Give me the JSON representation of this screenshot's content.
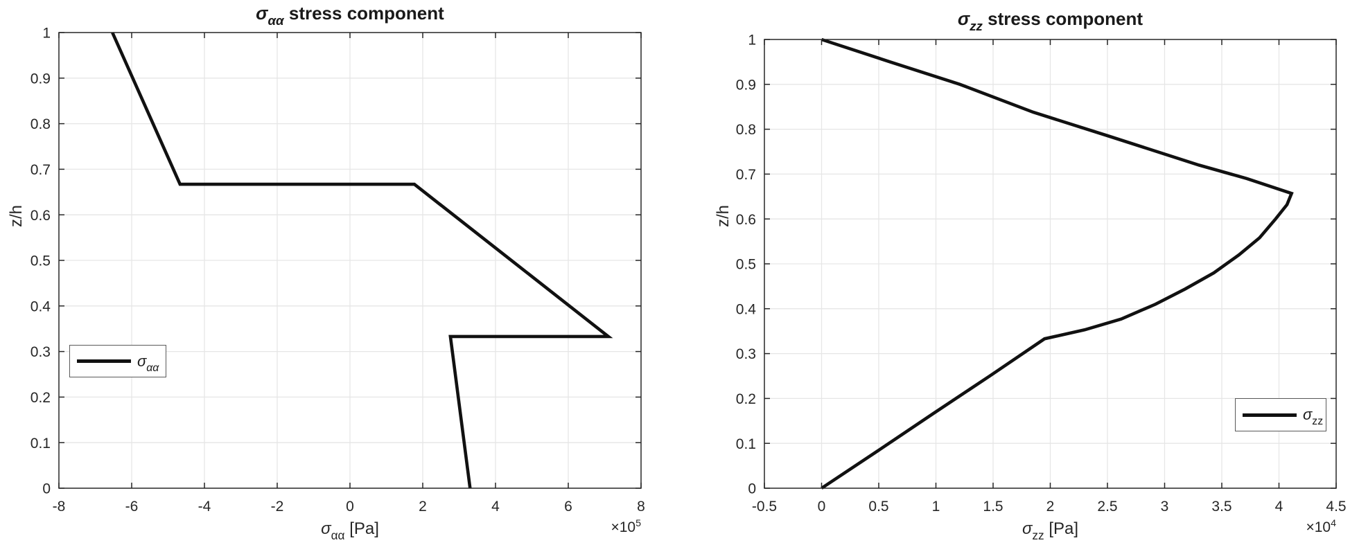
{
  "colors": {
    "background": "#ffffff",
    "curve": "#111111",
    "axis": "#262626",
    "grid": "#e6e6e6",
    "text": "#262626",
    "legend_border": "#595959"
  },
  "panels": [
    {
      "title": {
        "sigma": "σ",
        "sub": "αα",
        "rest": " stress component"
      },
      "xlabel": {
        "sigma": "σ",
        "sub": "αα",
        "rest": " [Pa]"
      },
      "ylabel": "z/h",
      "multiplier": {
        "prefix": "×10",
        "exp": "5"
      },
      "legend": {
        "sigma": "σ",
        "sub": "αα"
      }
    },
    {
      "title": {
        "sigma": "σ",
        "sub": "zz",
        "rest": " stress component"
      },
      "xlabel": {
        "sigma": "σ",
        "sub": "zz",
        "rest": " [Pa]"
      },
      "ylabel": "z/h",
      "multiplier": {
        "prefix": "×10",
        "exp": "4"
      },
      "legend": {
        "sigma": "σ",
        "sub": "zz"
      }
    }
  ],
  "chart_data": [
    {
      "type": "line",
      "title": "σ_αα stress component",
      "xlabel": "σ_αα [Pa]",
      "ylabel": "z/h",
      "x_unit_multiplier": 100000,
      "xlim": [
        -8,
        8
      ],
      "ylim": [
        0,
        1
      ],
      "grid": true,
      "x_ticks": [
        -8,
        -6,
        -4,
        -2,
        0,
        2,
        4,
        6,
        8
      ],
      "x_tick_labels": [
        "-8",
        "-6",
        "-4",
        "-2",
        "0",
        "2",
        "4",
        "6",
        "8"
      ],
      "y_ticks": [
        0,
        0.1,
        0.2,
        0.3,
        0.4,
        0.5,
        0.6,
        0.7,
        0.8,
        0.9,
        1
      ],
      "y_tick_labels": [
        "0",
        "0.1",
        "0.2",
        "0.3",
        "0.4",
        "0.5",
        "0.6",
        "0.7",
        "0.8",
        "0.9",
        "1"
      ],
      "legend_position": "left-lower",
      "series": [
        {
          "name": "σ_αα",
          "points": [
            [
              3.3,
              0.0
            ],
            [
              2.76,
              0.333
            ],
            [
              7.1,
              0.333
            ],
            [
              1.77,
              0.667
            ],
            [
              -4.67,
              0.667
            ],
            [
              -6.53,
              1.0
            ]
          ]
        }
      ]
    },
    {
      "type": "line",
      "title": "σ_zz stress component",
      "xlabel": "σ_zz [Pa]",
      "ylabel": "z/h",
      "x_unit_multiplier": 10000,
      "xlim": [
        -0.5,
        4.5
      ],
      "ylim": [
        0,
        1
      ],
      "grid": true,
      "x_ticks": [
        -0.5,
        0,
        0.5,
        1,
        1.5,
        2,
        2.5,
        3,
        3.5,
        4,
        4.5
      ],
      "x_tick_labels": [
        "-0.5",
        "0",
        "0.5",
        "1",
        "1.5",
        "2",
        "2.5",
        "3",
        "3.5",
        "4",
        "4.5"
      ],
      "y_ticks": [
        0,
        0.1,
        0.2,
        0.3,
        0.4,
        0.5,
        0.6,
        0.7,
        0.8,
        0.9,
        1
      ],
      "y_tick_labels": [
        "0",
        "0.1",
        "0.2",
        "0.3",
        "0.4",
        "0.5",
        "0.6",
        "0.7",
        "0.8",
        "0.9",
        "1"
      ],
      "legend_position": "right-lower",
      "series": [
        {
          "name": "σ_zz",
          "points": [
            [
              0.0,
              0.0
            ],
            [
              0.49,
              0.083
            ],
            [
              0.98,
              0.167
            ],
            [
              1.47,
              0.25
            ],
            [
              1.95,
              0.333
            ],
            [
              2.3,
              0.353
            ],
            [
              2.62,
              0.377
            ],
            [
              2.92,
              0.41
            ],
            [
              3.18,
              0.444
            ],
            [
              3.43,
              0.48
            ],
            [
              3.65,
              0.52
            ],
            [
              3.83,
              0.558
            ],
            [
              3.97,
              0.6
            ],
            [
              4.07,
              0.632
            ],
            [
              4.11,
              0.657
            ],
            [
              3.72,
              0.69
            ],
            [
              3.3,
              0.72
            ],
            [
              2.52,
              0.784
            ],
            [
              1.85,
              0.838
            ],
            [
              1.21,
              0.9
            ],
            [
              0.6,
              0.95
            ],
            [
              0.0,
              1.0
            ]
          ]
        }
      ]
    }
  ]
}
